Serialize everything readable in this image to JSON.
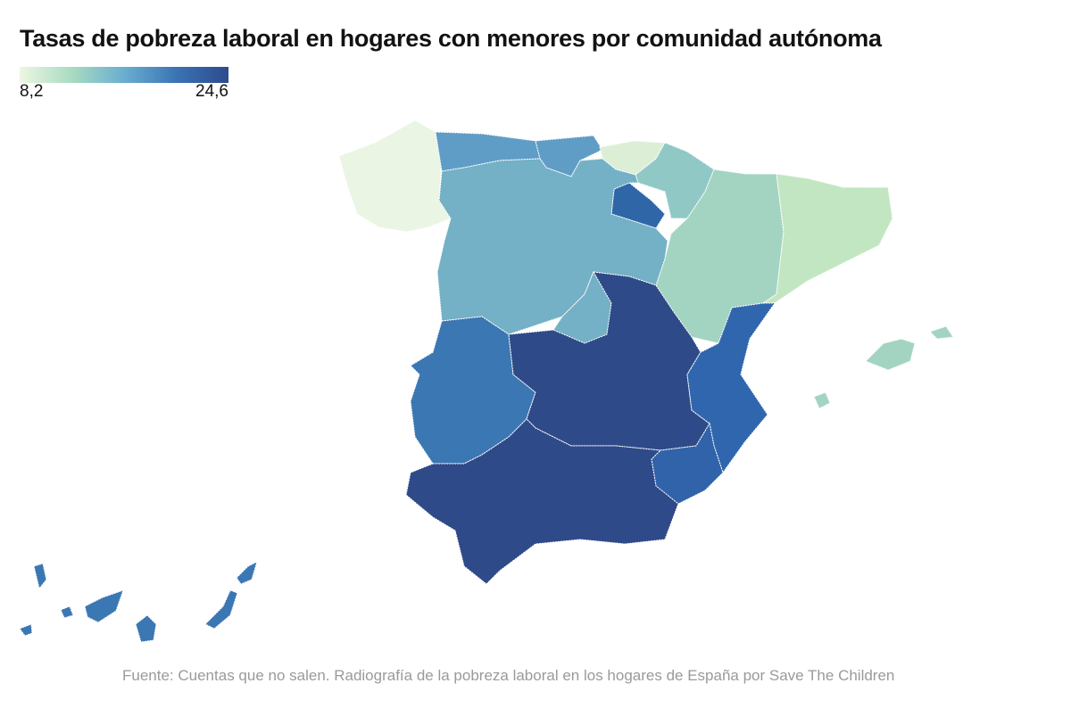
{
  "title": "Tasas de pobreza laboral en hogares con menores por comunidad autónoma",
  "legend": {
    "min_label": "8,2",
    "max_label": "24,6",
    "min_color": "#eef6e3",
    "max_color": "#2d4a8c"
  },
  "source": "Fuente: Cuentas que no salen. Radiografía de la pobreza laboral en los hogares de España por Save The Children",
  "region_colors": {
    "galicia": "#eaf5e3",
    "asturias": "#5f9dc6",
    "cantabria": "#5f9dc6",
    "pais_vasco": "#dcefd6",
    "navarra": "#90c8c6",
    "la_rioja": "#2f66a8",
    "aragon": "#a3d4c2",
    "cataluna": "#c3e6c2",
    "castilla_leon": "#74b0c6",
    "madrid": "#74b0c6",
    "extremadura": "#3b77b2",
    "castilla_la_mancha": "#2e4a88",
    "valencia": "#2f66ae",
    "murcia": "#3063a9",
    "andalucia": "#2f4a89",
    "baleares": "#a3d4c2",
    "canarias": "#3b77b2"
  }
}
